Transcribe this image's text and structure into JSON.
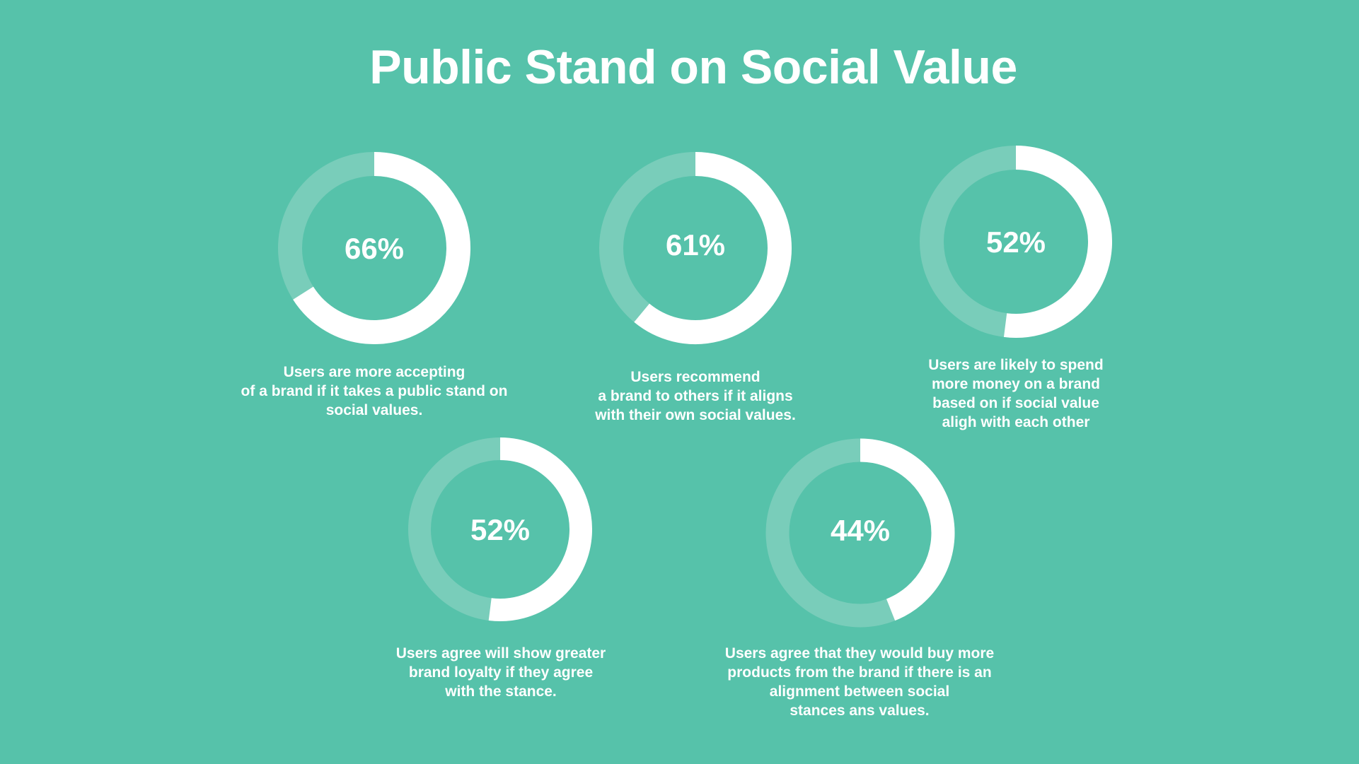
{
  "title": "Public Stand on Social Value",
  "colors": {
    "background": "#56c2aa",
    "ring_track": "#79cdba",
    "ring_fill": "#ffffff",
    "text": "#ffffff"
  },
  "chart_data": [
    {
      "type": "pie",
      "subtype": "donut",
      "values": [
        66
      ],
      "label": "66%",
      "caption": "Users are more accepting\nof a brand if it takes a public stand on\nsocial values."
    },
    {
      "type": "pie",
      "subtype": "donut",
      "values": [
        61
      ],
      "label": "61%",
      "caption": "Users recommend\na brand to others if it aligns\nwith their own social values."
    },
    {
      "type": "pie",
      "subtype": "donut",
      "values": [
        52
      ],
      "label": "52%",
      "caption": "Users are likely to spend\nmore money on a brand\nbased on if social value\naligh with each other"
    },
    {
      "type": "pie",
      "subtype": "donut",
      "values": [
        52
      ],
      "label": "52%",
      "caption": "Users agree will show greater\nbrand loyalty if they agree\nwith the stance."
    },
    {
      "type": "pie",
      "subtype": "donut",
      "values": [
        44
      ],
      "label": "44%",
      "caption": "Users agree that they would buy more\nproducts from the brand if there is an\nalignment between social\nstances ans values."
    }
  ]
}
